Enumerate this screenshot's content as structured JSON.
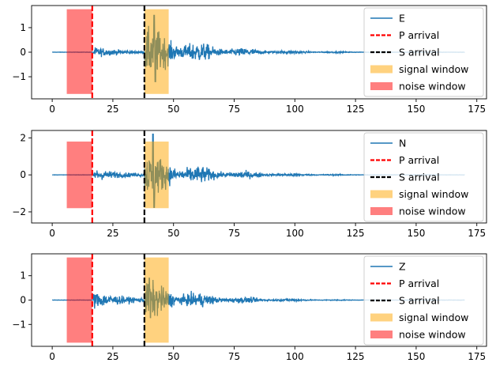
{
  "chart_data": [
    {
      "type": "line",
      "xlim": [
        -8.5,
        179
      ],
      "ylim": [
        -1.9,
        1.9
      ],
      "x_ticks": [
        0,
        25,
        50,
        75,
        100,
        125,
        150,
        175
      ],
      "y_ticks": [
        -1,
        0,
        1
      ],
      "x_tick_labels": [
        "0",
        "25",
        "50",
        "75",
        "100",
        "125",
        "150",
        "175"
      ],
      "y_tick_labels": [
        "−1",
        "0",
        "1"
      ],
      "grid": false,
      "legend_position": "upper-right",
      "series": [
        {
          "name": "E",
          "color": "#1f77b4",
          "duration": 170,
          "p_onset": 17,
          "s_onset": 38,
          "p_amp": 0.35,
          "s_amp": 1.35,
          "spike_x": 42,
          "spike_amp": 1.5
        }
      ],
      "p_arrival": {
        "label": "P arrival",
        "x": 16.5,
        "color": "#ff0000"
      },
      "s_arrival": {
        "label": "S arrival",
        "x": 38,
        "color": "#000000"
      },
      "signal_window": {
        "label": "signal window",
        "x_start": 38,
        "x_end": 48,
        "y_min": -1.7,
        "y_max": 1.75,
        "color": "#ffa500"
      },
      "noise_window": {
        "label": "noise window",
        "x_start": 6,
        "x_end": 16.5,
        "y_min": -1.7,
        "y_max": 1.75,
        "color": "#ff0000"
      }
    },
    {
      "type": "line",
      "xlim": [
        -8.5,
        179
      ],
      "ylim": [
        -2.6,
        2.4
      ],
      "x_ticks": [
        0,
        25,
        50,
        75,
        100,
        125,
        150,
        175
      ],
      "y_ticks": [
        -2,
        0,
        2
      ],
      "x_tick_labels": [
        "0",
        "25",
        "50",
        "75",
        "100",
        "125",
        "150",
        "175"
      ],
      "y_tick_labels": [
        "−2",
        "0",
        "2"
      ],
      "grid": false,
      "legend_position": "upper-right",
      "series": [
        {
          "name": "N",
          "color": "#1f77b4",
          "duration": 170,
          "p_onset": 17,
          "s_onset": 38,
          "p_amp": 0.55,
          "s_amp": 1.6,
          "spike_x": 41.5,
          "spike_amp": 2.2
        }
      ],
      "p_arrival": {
        "label": "P arrival",
        "x": 16.5,
        "color": "#ff0000"
      },
      "s_arrival": {
        "label": "S arrival",
        "x": 38,
        "color": "#000000"
      },
      "signal_window": {
        "label": "signal window",
        "x_start": 38,
        "x_end": 48,
        "y_min": -1.8,
        "y_max": 1.8,
        "color": "#ffa500"
      },
      "noise_window": {
        "label": "noise window",
        "x_start": 6,
        "x_end": 16.5,
        "y_min": -1.8,
        "y_max": 1.8,
        "color": "#ff0000"
      }
    },
    {
      "type": "line",
      "xlim": [
        -8.5,
        179
      ],
      "ylim": [
        -1.9,
        1.9
      ],
      "x_ticks": [
        0,
        25,
        50,
        75,
        100,
        125,
        150,
        175
      ],
      "y_ticks": [
        -1,
        0,
        1
      ],
      "x_tick_labels": [
        "0",
        "25",
        "50",
        "75",
        "100",
        "125",
        "150",
        "175"
      ],
      "y_tick_labels": [
        "−1",
        "0",
        "1"
      ],
      "grid": false,
      "legend_position": "upper-right",
      "series": [
        {
          "name": "Z",
          "color": "#1f77b4",
          "duration": 170,
          "p_onset": 17,
          "s_onset": 38,
          "p_amp": 0.6,
          "s_amp": 1.0,
          "spike_x": 40,
          "spike_amp": 0.9
        }
      ],
      "p_arrival": {
        "label": "P arrival",
        "x": 16.5,
        "color": "#ff0000"
      },
      "s_arrival": {
        "label": "S arrival",
        "x": 38,
        "color": "#000000"
      },
      "signal_window": {
        "label": "signal window",
        "x_start": 38,
        "x_end": 48,
        "y_min": -1.75,
        "y_max": 1.75,
        "color": "#ffa500"
      },
      "noise_window": {
        "label": "noise window",
        "x_start": 6,
        "x_end": 16.5,
        "y_min": -1.75,
        "y_max": 1.75,
        "color": "#ff0000"
      }
    }
  ]
}
